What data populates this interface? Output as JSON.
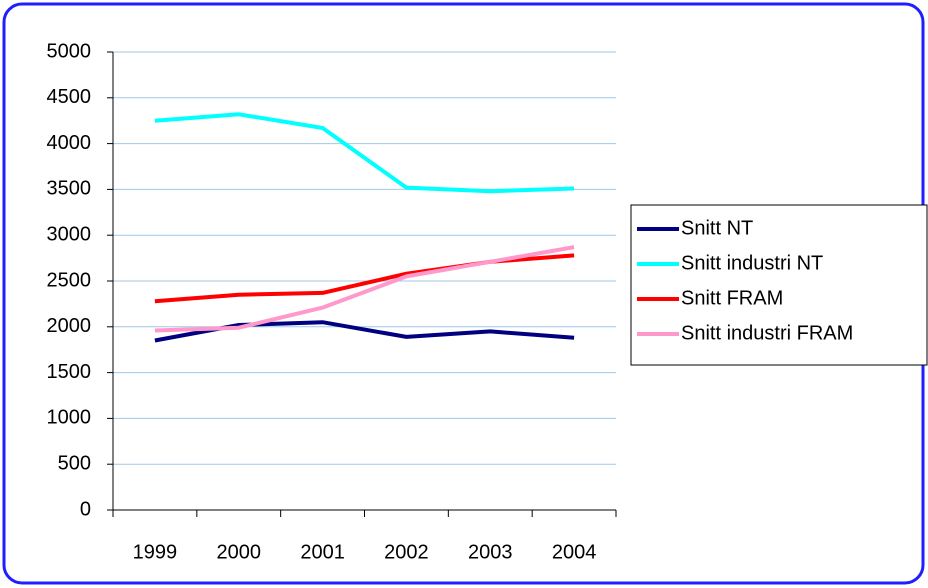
{
  "chart_data": {
    "type": "line",
    "categories": [
      "1999",
      "2000",
      "2001",
      "2002",
      "2003",
      "2004"
    ],
    "series": [
      {
        "name": "Snitt NT",
        "color": "#000080",
        "values": [
          1850,
          2020,
          2050,
          1890,
          1950,
          1880
        ]
      },
      {
        "name": "Snitt industri NT",
        "color": "#00ffff",
        "values": [
          4250,
          4320,
          4170,
          3520,
          3480,
          3510
        ]
      },
      {
        "name": "Snitt FRAM",
        "color": "#ff0000",
        "values": [
          2280,
          2350,
          2370,
          2580,
          2710,
          2780
        ]
      },
      {
        "name": "Snitt industri FRAM",
        "color": "#ff99cc",
        "values": [
          1960,
          1990,
          2210,
          2550,
          2710,
          2870
        ]
      }
    ],
    "ylim": [
      0,
      5000
    ],
    "yticks": [
      0,
      500,
      1000,
      1500,
      2000,
      2500,
      3000,
      3500,
      4000,
      4500,
      5000
    ],
    "grid": true,
    "legend": "right"
  }
}
